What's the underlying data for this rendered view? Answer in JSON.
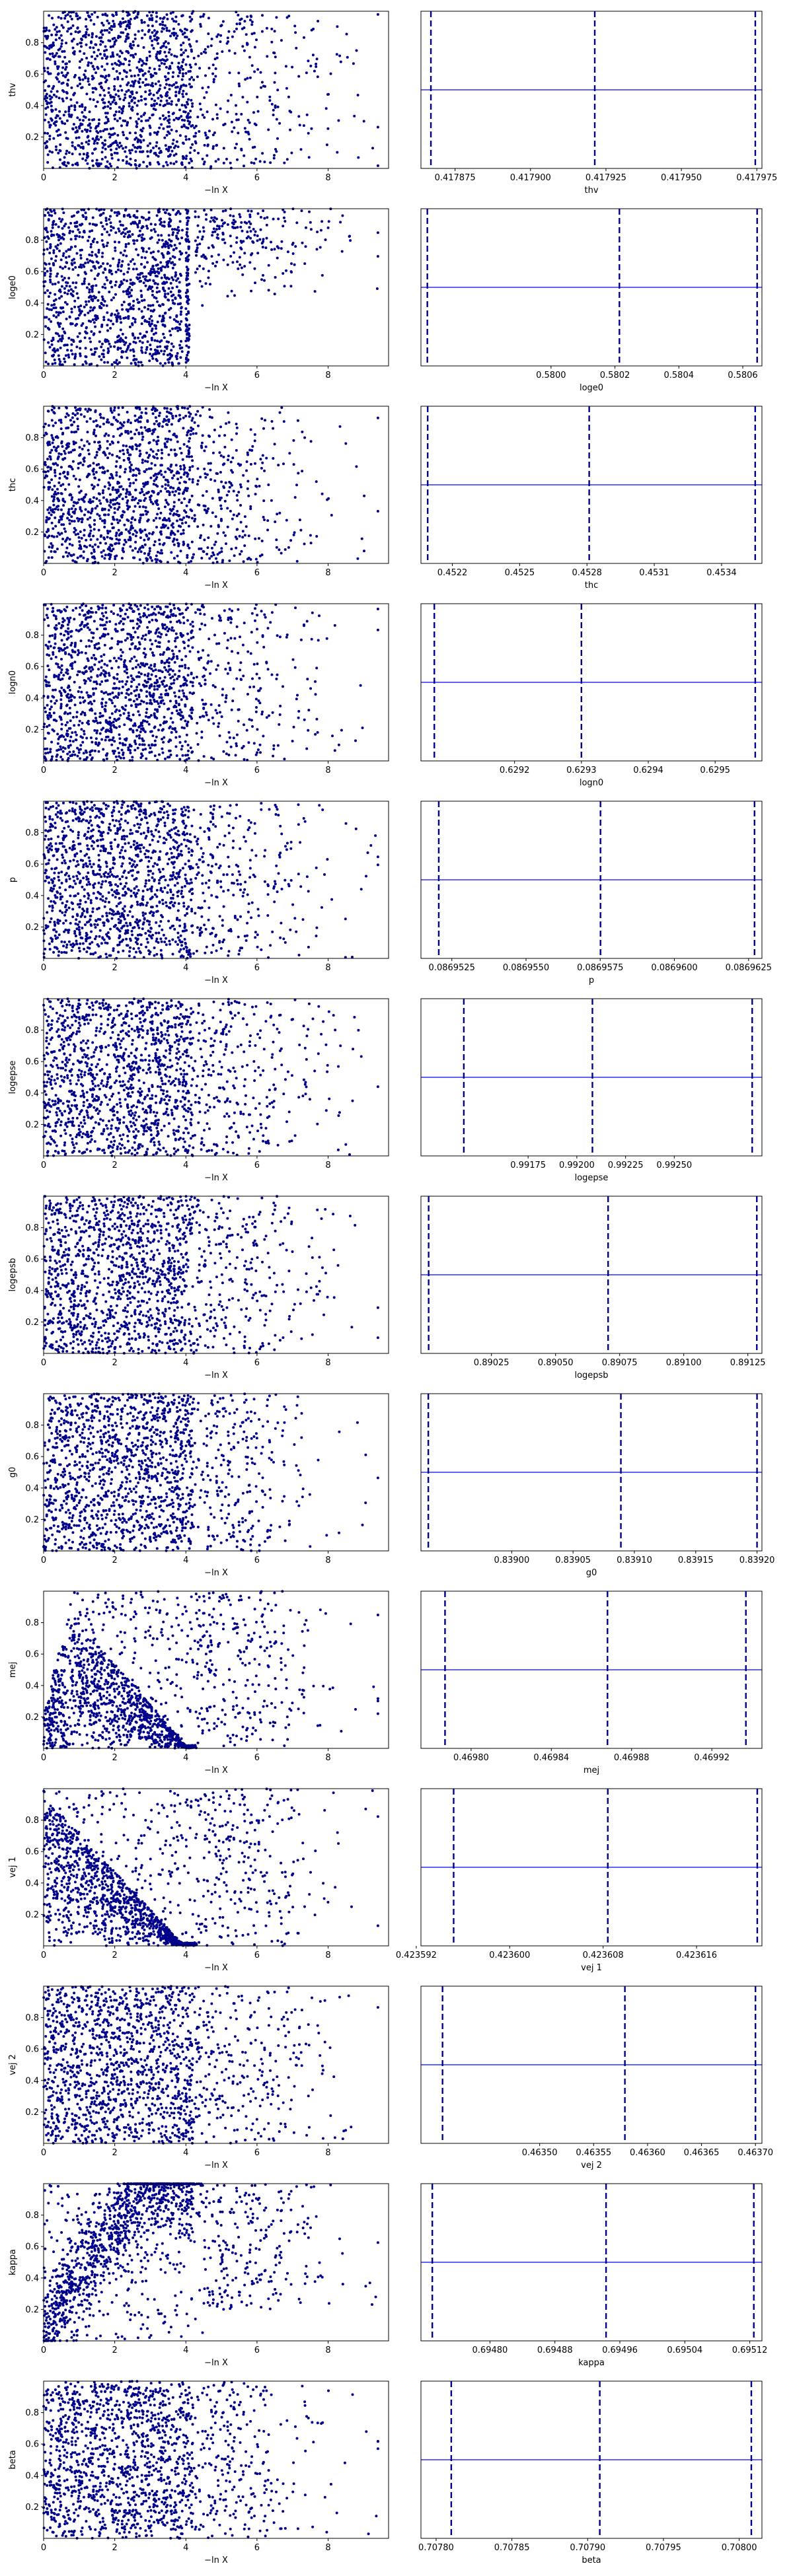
{
  "figure": {
    "left_xlabel": "−ln X",
    "left_xlim": [
      0,
      9.7
    ],
    "left_xticks": [
      "0",
      "2",
      "4",
      "6",
      "8"
    ],
    "left_ylim": [
      0,
      1
    ],
    "left_yticks": [
      "0.2",
      "0.4",
      "0.6",
      "0.8"
    ]
  },
  "colors": {
    "scatter": "#00008b",
    "line": "#0000ff",
    "axes": "#000000"
  },
  "chart_data": [
    {
      "type": "scatter+line",
      "name": "thv",
      "ylabel": "thv",
      "xlabel": "thv",
      "hist_xlim": [
        0.4178637,
        0.4179767
      ],
      "lines": [
        0.417867,
        0.4179213,
        0.4179745
      ],
      "level": 0.5,
      "ticks": [
        {
          "v": 0.417875,
          "label": "0.417875"
        },
        {
          "v": 0.4179,
          "label": "0.417900"
        },
        {
          "v": 0.417925,
          "label": "0.417925"
        },
        {
          "v": 0.41795,
          "label": "0.417950"
        },
        {
          "v": 0.417975,
          "label": "0.417975"
        }
      ],
      "pattern": "uniform"
    },
    {
      "type": "scatter+line",
      "name": "loge0",
      "ylabel": "loge0",
      "xlabel": "loge0",
      "hist_xlim": [
        0.579593,
        0.58066
      ],
      "lines": [
        0.579613,
        0.580214,
        0.580645
      ],
      "level": 0.5,
      "ticks": [
        {
          "v": 0.58,
          "label": "0.5800"
        },
        {
          "v": 0.5802,
          "label": "0.5802"
        },
        {
          "v": 0.5804,
          "label": "0.5804"
        },
        {
          "v": 0.5806,
          "label": "0.5806"
        }
      ],
      "pattern": "loge0"
    },
    {
      "type": "scatter+line",
      "name": "thc",
      "ylabel": "thc",
      "xlabel": "thc",
      "hist_xlim": [
        0.45206,
        0.45358
      ],
      "lines": [
        0.45209,
        0.45281,
        0.45355
      ],
      "level": 0.5,
      "ticks": [
        {
          "v": 0.4522,
          "label": "0.4522"
        },
        {
          "v": 0.4525,
          "label": "0.4525"
        },
        {
          "v": 0.4528,
          "label": "0.4528"
        },
        {
          "v": 0.4531,
          "label": "0.4531"
        },
        {
          "v": 0.4534,
          "label": "0.4534"
        }
      ],
      "pattern": "uniform"
    },
    {
      "type": "scatter+line",
      "name": "logn0",
      "ylabel": "logn0",
      "xlabel": "logn0",
      "hist_xlim": [
        0.62906,
        0.62957
      ],
      "lines": [
        0.62908,
        0.6293,
        0.62956
      ],
      "level": 0.5,
      "ticks": [
        {
          "v": 0.6292,
          "label": "0.6292"
        },
        {
          "v": 0.6293,
          "label": "0.6293"
        },
        {
          "v": 0.6294,
          "label": "0.6294"
        },
        {
          "v": 0.6295,
          "label": "0.6295"
        }
      ],
      "pattern": "uniform"
    },
    {
      "type": "scatter+line",
      "name": "p",
      "ylabel": "p",
      "xlabel": "p",
      "hist_xlim": [
        0.08695146,
        0.08696295
      ],
      "lines": [
        0.08695206,
        0.08695751,
        0.0869627
      ],
      "level": 0.5,
      "ticks": [
        {
          "v": 0.0869525,
          "label": "0.0869525"
        },
        {
          "v": 0.086955,
          "label": "0.0869550"
        },
        {
          "v": 0.0869575,
          "label": "0.0869575"
        },
        {
          "v": 0.08696,
          "label": "0.0869600"
        },
        {
          "v": 0.0869625,
          "label": "0.0869625"
        }
      ],
      "pattern": "uniform"
    },
    {
      "type": "scatter+line",
      "name": "logepse",
      "ylabel": "logepse",
      "xlabel": "logepse",
      "hist_xlim": [
        0.9912,
        0.99295
      ],
      "lines": [
        0.99142,
        0.99208,
        0.9929
      ],
      "level": 0.5,
      "ticks": [
        {
          "v": 0.99175,
          "label": "0.99175"
        },
        {
          "v": 0.992,
          "label": "0.99200"
        },
        {
          "v": 0.99225,
          "label": "0.99225"
        },
        {
          "v": 0.9925,
          "label": "0.99250"
        }
      ],
      "pattern": "uniform"
    },
    {
      "type": "scatter+line",
      "name": "logepsb",
      "ylabel": "logepsb",
      "xlabel": "logepsb",
      "hist_xlim": [
        0.889975,
        0.891305
      ],
      "lines": [
        0.890005,
        0.890705,
        0.891285
      ],
      "level": 0.5,
      "ticks": [
        {
          "v": 0.89025,
          "label": "0.89025"
        },
        {
          "v": 0.8905,
          "label": "0.89050"
        },
        {
          "v": 0.89075,
          "label": "0.89075"
        },
        {
          "v": 0.891,
          "label": "0.89100"
        },
        {
          "v": 0.89125,
          "label": "0.89125"
        }
      ],
      "pattern": "uniform"
    },
    {
      "type": "scatter+line",
      "name": "g0",
      "ylabel": "g0",
      "xlabel": "g0",
      "hist_xlim": [
        0.838926,
        0.839204
      ],
      "lines": [
        0.838932,
        0.839089,
        0.8392
      ],
      "level": 0.5,
      "ticks": [
        {
          "v": 0.839,
          "label": "0.83900"
        },
        {
          "v": 0.83905,
          "label": "0.83905"
        },
        {
          "v": 0.8391,
          "label": "0.83910"
        },
        {
          "v": 0.83915,
          "label": "0.83915"
        },
        {
          "v": 0.8392,
          "label": "0.83920"
        }
      ],
      "pattern": "uniform"
    },
    {
      "type": "scatter+line",
      "name": "mej",
      "ylabel": "mej",
      "xlabel": "mej",
      "hist_xlim": [
        0.469775,
        0.469945
      ],
      "lines": [
        0.469787,
        0.469868,
        0.469937
      ],
      "level": 0.5,
      "ticks": [
        {
          "v": 0.4698,
          "label": "0.46980"
        },
        {
          "v": 0.46984,
          "label": "0.46984"
        },
        {
          "v": 0.46988,
          "label": "0.46988"
        },
        {
          "v": 0.46992,
          "label": "0.46992"
        }
      ],
      "pattern": "mej"
    },
    {
      "type": "scatter+line",
      "name": "vej 1",
      "ylabel": "vej 1",
      "xlabel": "vej 1",
      "hist_xlim": [
        0.4235924,
        0.4236216
      ],
      "lines": [
        0.4235952,
        0.4236084,
        0.4236212
      ],
      "level": 0.5,
      "ticks": [
        {
          "v": 0.423592,
          "label": "0.423592"
        },
        {
          "v": 0.4236,
          "label": "0.423600"
        },
        {
          "v": 0.423608,
          "label": "0.423608"
        },
        {
          "v": 0.423616,
          "label": "0.423616"
        }
      ],
      "pattern": "vej1"
    },
    {
      "type": "scatter+line",
      "name": "vej 2",
      "ylabel": "vej 2",
      "xlabel": "vej 2",
      "hist_xlim": [
        0.46339,
        0.463706
      ],
      "lines": [
        0.46341,
        0.463579,
        0.4637
      ],
      "level": 0.5,
      "ticks": [
        {
          "v": 0.4635,
          "label": "0.46350"
        },
        {
          "v": 0.46355,
          "label": "0.46355"
        },
        {
          "v": 0.4636,
          "label": "0.46360"
        },
        {
          "v": 0.46365,
          "label": "0.46365"
        },
        {
          "v": 0.4637,
          "label": "0.46370"
        }
      ],
      "pattern": "uniform"
    },
    {
      "type": "scatter+line",
      "name": "kappa",
      "ylabel": "kappa",
      "xlabel": "kappa",
      "hist_xlim": [
        0.694715,
        0.695135
      ],
      "lines": [
        0.694729,
        0.694943,
        0.695125
      ],
      "level": 0.5,
      "ticks": [
        {
          "v": 0.6948,
          "label": "0.69480"
        },
        {
          "v": 0.69488,
          "label": "0.69488"
        },
        {
          "v": 0.69496,
          "label": "0.69496"
        },
        {
          "v": 0.69504,
          "label": "0.69504"
        },
        {
          "v": 0.69512,
          "label": "0.69512"
        }
      ],
      "pattern": "kappa"
    },
    {
      "type": "scatter+line",
      "name": "beta",
      "ylabel": "beta",
      "xlabel": "beta",
      "hist_xlim": [
        0.70779,
        0.708015
      ],
      "lines": [
        0.70781,
        0.707908,
        0.708008
      ],
      "level": 0.5,
      "ticks": [
        {
          "v": 0.7078,
          "label": "0.70780"
        },
        {
          "v": 0.70785,
          "label": "0.70785"
        },
        {
          "v": 0.7079,
          "label": "0.70790"
        },
        {
          "v": 0.70795,
          "label": "0.70795"
        },
        {
          "v": 0.708,
          "label": "0.70800"
        }
      ],
      "pattern": "uniform"
    }
  ]
}
